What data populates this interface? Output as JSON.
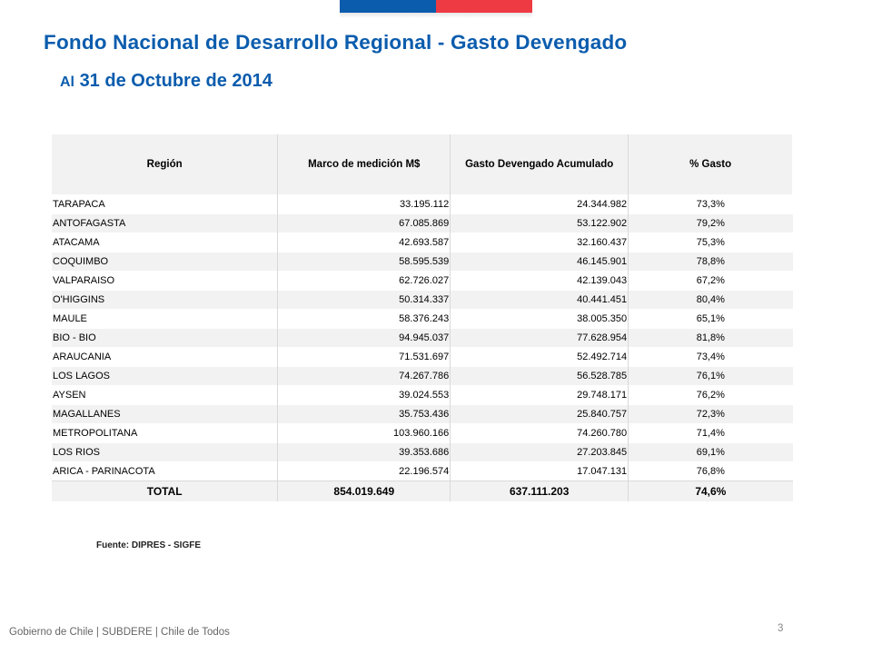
{
  "header": {
    "title": "Fondo Nacional de Desarrollo Regional - Gasto Devengado",
    "subtitle_prefix": "Al",
    "subtitle_date": "31 de Octubre de 2014"
  },
  "table": {
    "columns": [
      "Región",
      "Marco de medición M$",
      "Gasto Devengado Acumulado",
      "% Gasto"
    ],
    "rows": [
      [
        "TARAPACA",
        "33.195.112",
        "24.344.982",
        "73,3%"
      ],
      [
        "ANTOFAGASTA",
        "67.085.869",
        "53.122.902",
        "79,2%"
      ],
      [
        "ATACAMA",
        "42.693.587",
        "32.160.437",
        "75,3%"
      ],
      [
        "COQUIMBO",
        "58.595.539",
        "46.145.901",
        "78,8%"
      ],
      [
        "VALPARAISO",
        "62.726.027",
        "42.139.043",
        "67,2%"
      ],
      [
        "O'HIGGINS",
        "50.314.337",
        "40.441.451",
        "80,4%"
      ],
      [
        "MAULE",
        "58.376.243",
        "38.005.350",
        "65,1%"
      ],
      [
        "BIO - BIO",
        "94.945.037",
        "77.628.954",
        "81,8%"
      ],
      [
        "ARAUCANIA",
        "71.531.697",
        "52.492.714",
        "73,4%"
      ],
      [
        "LOS LAGOS",
        "74.267.786",
        "56.528.785",
        "76,1%"
      ],
      [
        "AYSEN",
        "39.024.553",
        "29.748.171",
        "76,2%"
      ],
      [
        "MAGALLANES",
        "35.753.436",
        "25.840.757",
        "72,3%"
      ],
      [
        "METROPOLITANA",
        "103.960.166",
        "74.260.780",
        "71,4%"
      ],
      [
        "LOS RIOS",
        "39.353.686",
        "27.203.845",
        "69,1%"
      ],
      [
        "ARICA - PARINACOTA",
        "22.196.574",
        "17.047.131",
        "76,8%"
      ]
    ],
    "total": [
      "TOTAL",
      "854.019.649",
      "637.111.203",
      "74,6%"
    ]
  },
  "source": "Fuente: DIPRES - SIGFE",
  "footer": {
    "text": "Gobierno de Chile | SUBDERE | Chile de Todos",
    "page_number": "3"
  },
  "colors": {
    "accent_blue": "#0b5cad",
    "accent_red": "#ee3a43"
  }
}
